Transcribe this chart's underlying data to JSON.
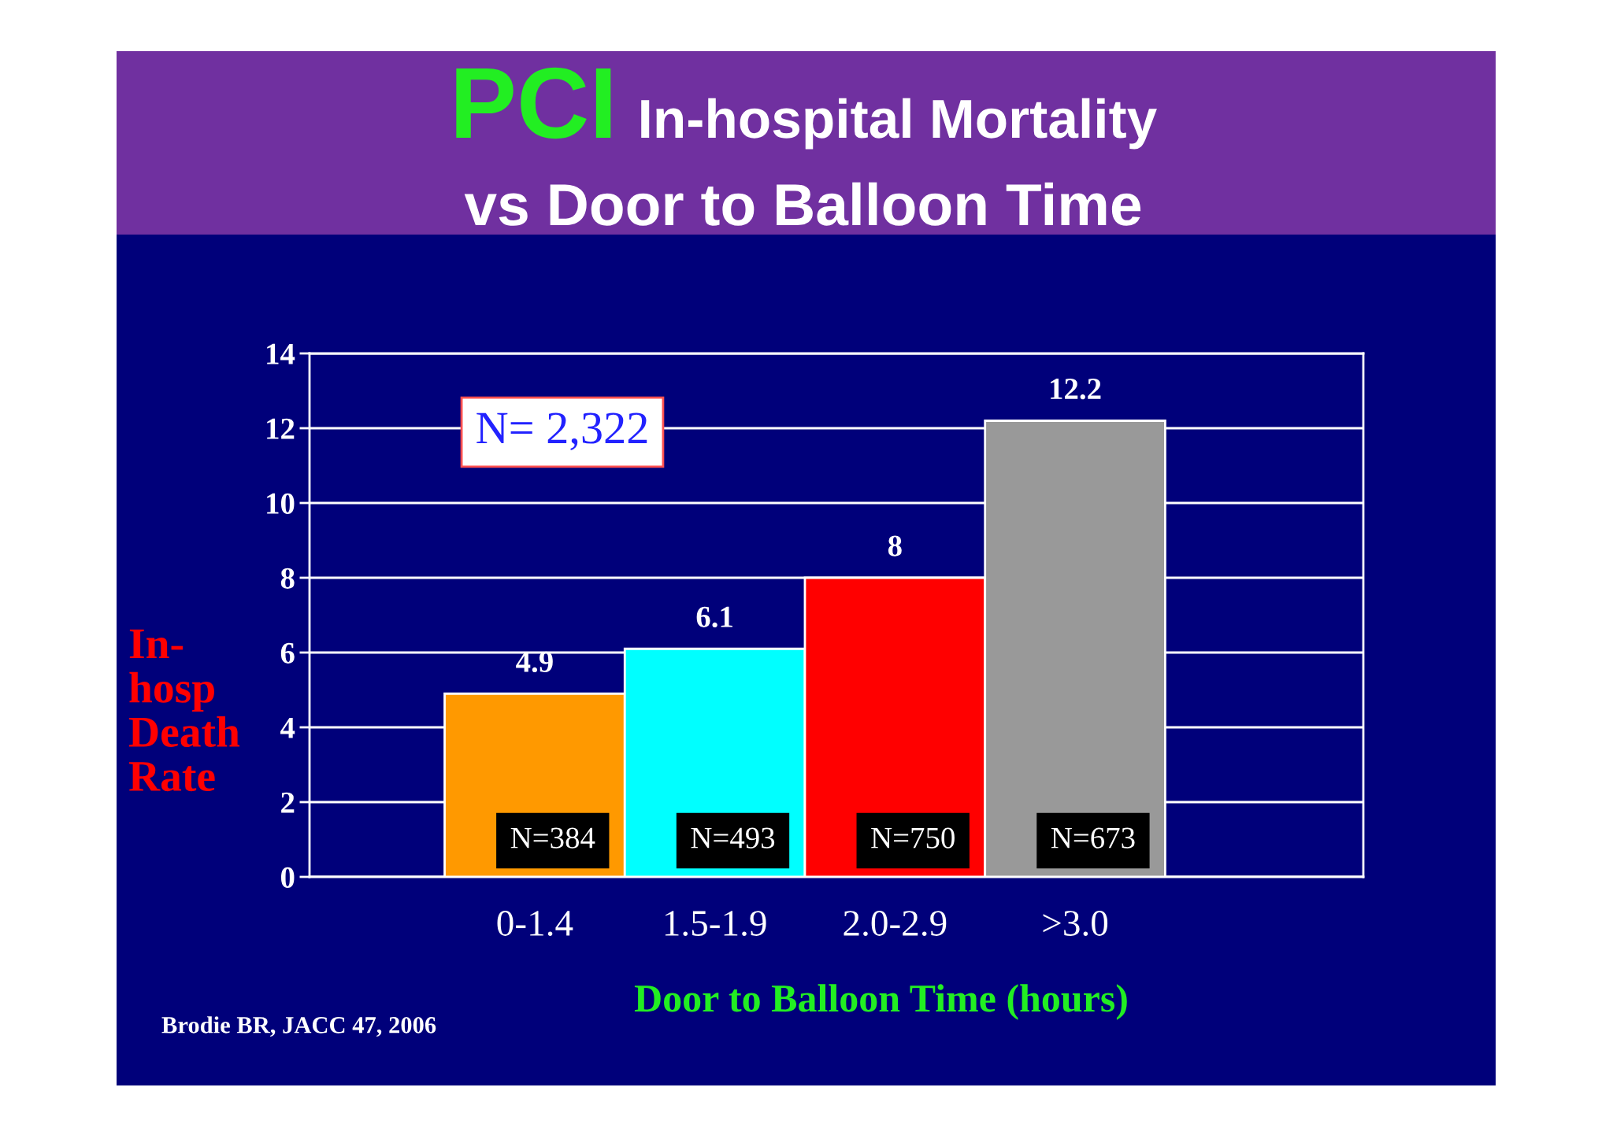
{
  "chart_data": {
    "type": "bar",
    "title": "PCI In-hospital Mortality\nvs Door to Balloon Time",
    "xlabel": "Door to Balloon Time (hours)",
    "ylabel": "In-hosp Death Rate",
    "categories": [
      "0-1.4",
      "1.5-1.9",
      "2.0-2.9",
      ">3.0"
    ],
    "values": [
      4.9,
      6.1,
      8,
      12.2
    ],
    "colors": [
      "#ff9900",
      "#00ffff",
      "#ff0000",
      "#999999"
    ],
    "ylim": [
      0,
      14
    ],
    "yticks": [
      0,
      2,
      4,
      6,
      8,
      10,
      12,
      14
    ],
    "grid": "y",
    "data_labels": true,
    "annotations": [
      "N= 2,322",
      "N=384",
      "N=493",
      "N=750",
      "N=673",
      "Brodie BR, JACC 47, 2006"
    ]
  }
}
